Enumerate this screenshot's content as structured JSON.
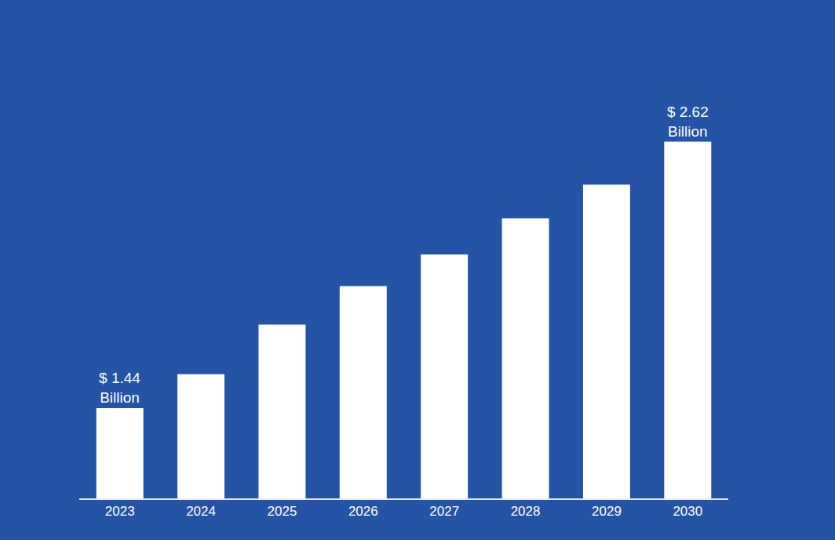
{
  "chart_data": {
    "type": "bar",
    "categories": [
      "2023",
      "2024",
      "2025",
      "2026",
      "2027",
      "2028",
      "2029",
      "2030"
    ],
    "values": [
      1.44,
      1.59,
      1.81,
      1.98,
      2.12,
      2.28,
      2.43,
      2.62
    ],
    "value_labels": [
      "$ 1.44 Billion",
      null,
      null,
      null,
      null,
      null,
      null,
      "$ 2.62 Billion"
    ],
    "data_labels": true,
    "color": "#ffffff",
    "ylim": [
      1.04,
      2.9
    ],
    "grid": false,
    "tick_labels": "x"
  }
}
